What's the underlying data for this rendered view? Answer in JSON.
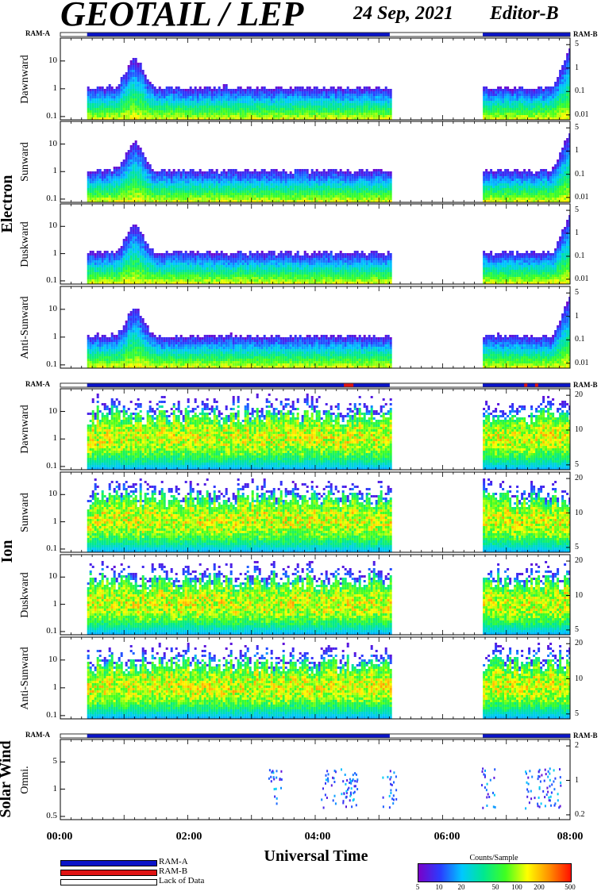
{
  "header": {
    "title": "GEOTAIL / LEP",
    "date": "24 Sep, 2021",
    "editor": "Editor-B"
  },
  "ram_labels": {
    "left": "RAM-A",
    "right": "RAM-B"
  },
  "groups": {
    "electron": "Electron",
    "ion": "Ion",
    "solar_wind": "Solar Wind"
  },
  "x_axis": {
    "label": "Universal Time",
    "ticks": [
      "00:00",
      "02:00",
      "04:00",
      "06:00",
      "08:00"
    ]
  },
  "legend": {
    "ram_a": "RAM-A",
    "ram_b": "RAM-B",
    "lack": "Lack of Data"
  },
  "colorbar": {
    "title": "Counts/Sample",
    "ticks": [
      "5",
      "10",
      "20",
      "50",
      "100",
      "200",
      "500"
    ]
  },
  "colors": {
    "ram_a": "#0a14c8",
    "ram_b": "#e01414"
  },
  "chart_data": [
    {
      "type": "heatmap",
      "group": "Electron",
      "ylabel": "Dawnward",
      "yticks": [
        "10",
        "1",
        "0.1"
      ],
      "y2ticks": [
        "5",
        "1",
        "0.1",
        "0.01"
      ],
      "x_range": [
        "00:00",
        "08:00"
      ],
      "data_gaps": [
        [
          "00:00",
          "00:25"
        ],
        [
          "05:10",
          "06:38"
        ]
      ]
    },
    {
      "type": "heatmap",
      "group": "Electron",
      "ylabel": "Sunward",
      "yticks": [
        "10",
        "1",
        "0.1"
      ],
      "y2ticks": [
        "5",
        "1",
        "0.1",
        "0.01"
      ],
      "x_range": [
        "00:00",
        "08:00"
      ],
      "data_gaps": [
        [
          "00:00",
          "00:25"
        ],
        [
          "05:10",
          "06:38"
        ]
      ]
    },
    {
      "type": "heatmap",
      "group": "Electron",
      "ylabel": "Duskward",
      "yticks": [
        "10",
        "1",
        "0.1"
      ],
      "y2ticks": [
        "5",
        "1",
        "0.1",
        "0.01"
      ],
      "x_range": [
        "00:00",
        "08:00"
      ],
      "data_gaps": [
        [
          "00:00",
          "00:25"
        ],
        [
          "05:10",
          "06:38"
        ]
      ]
    },
    {
      "type": "heatmap",
      "group": "Electron",
      "ylabel": "Anti-Sunward",
      "yticks": [
        "10",
        "1",
        "0.1"
      ],
      "y2ticks": [
        "5",
        "1",
        "0.1",
        "0.01"
      ],
      "x_range": [
        "00:00",
        "08:00"
      ],
      "data_gaps": [
        [
          "00:00",
          "00:25"
        ],
        [
          "05:10",
          "06:38"
        ]
      ]
    },
    {
      "type": "heatmap",
      "group": "Ion",
      "ylabel": "Dawnward",
      "yticks": [
        "10",
        "1",
        "0.1"
      ],
      "y2ticks": [
        "20",
        "10",
        "5"
      ],
      "x_range": [
        "00:00",
        "08:00"
      ],
      "data_gaps": [
        [
          "00:00",
          "00:25"
        ],
        [
          "05:10",
          "06:38"
        ]
      ]
    },
    {
      "type": "heatmap",
      "group": "Ion",
      "ylabel": "Sunward",
      "yticks": [
        "10",
        "1",
        "0.1"
      ],
      "y2ticks": [
        "20",
        "10",
        "5"
      ],
      "x_range": [
        "00:00",
        "08:00"
      ],
      "data_gaps": [
        [
          "00:00",
          "00:25"
        ],
        [
          "05:10",
          "06:38"
        ]
      ]
    },
    {
      "type": "heatmap",
      "group": "Ion",
      "ylabel": "Duskward",
      "yticks": [
        "10",
        "1",
        "0.1"
      ],
      "y2ticks": [
        "20",
        "10",
        "5"
      ],
      "x_range": [
        "00:00",
        "08:00"
      ],
      "data_gaps": [
        [
          "00:00",
          "00:25"
        ],
        [
          "05:10",
          "06:38"
        ]
      ]
    },
    {
      "type": "heatmap",
      "group": "Ion",
      "ylabel": "Anti-Sunward",
      "yticks": [
        "10",
        "1",
        "0.1"
      ],
      "y2ticks": [
        "20",
        "10",
        "5"
      ],
      "x_range": [
        "00:00",
        "08:00"
      ],
      "data_gaps": [
        [
          "00:00",
          "00:25"
        ],
        [
          "05:10",
          "06:38"
        ]
      ]
    },
    {
      "type": "heatmap",
      "group": "Solar Wind",
      "ylabel": "Omni.",
      "yticks": [
        "5",
        "1",
        "0.5"
      ],
      "y2ticks": [
        "2",
        "1",
        "0.2"
      ],
      "x_range": [
        "00:00",
        "08:00"
      ]
    }
  ]
}
